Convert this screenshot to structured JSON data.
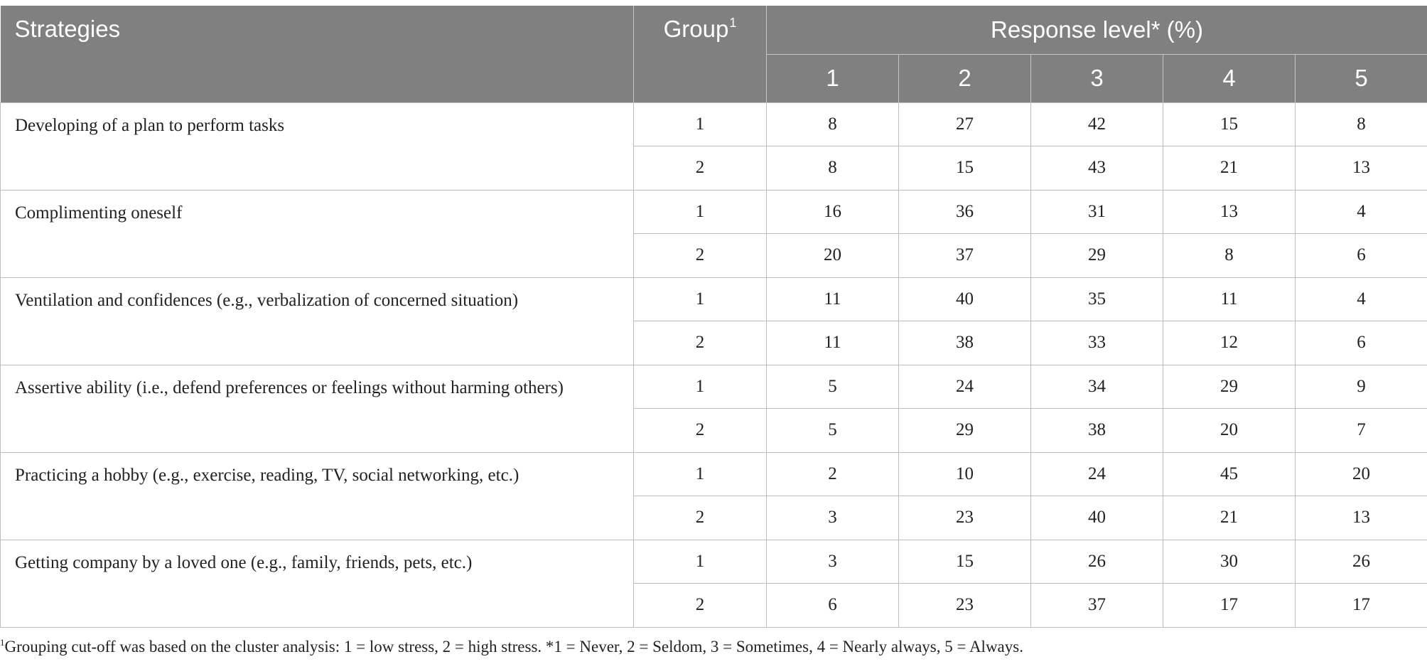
{
  "header": {
    "strategies": "Strategies",
    "group": "Group",
    "group_sup": "1",
    "response_level": "Response level* (%)",
    "levels": [
      "1",
      "2",
      "3",
      "4",
      "5"
    ]
  },
  "rows": [
    {
      "strategy": "Developing of a plan to perform tasks",
      "g1": {
        "group": "1",
        "values": [
          "8",
          "27",
          "42",
          "15",
          "8"
        ]
      },
      "g2": {
        "group": "2",
        "values": [
          "8",
          "15",
          "43",
          "21",
          "13"
        ]
      }
    },
    {
      "strategy": "Complimenting oneself",
      "g1": {
        "group": "1",
        "values": [
          "16",
          "36",
          "31",
          "13",
          "4"
        ]
      },
      "g2": {
        "group": "2",
        "values": [
          "20",
          "37",
          "29",
          "8",
          "6"
        ]
      }
    },
    {
      "strategy": "Ventilation and confidences (e.g., verbalization of concerned situation)",
      "g1": {
        "group": "1",
        "values": [
          "11",
          "40",
          "35",
          "11",
          "4"
        ]
      },
      "g2": {
        "group": "2",
        "values": [
          "11",
          "38",
          "33",
          "12",
          "6"
        ]
      }
    },
    {
      "strategy": "Assertive ability (i.e., defend preferences or feelings without harming others)",
      "g1": {
        "group": "1",
        "values": [
          "5",
          "24",
          "34",
          "29",
          "9"
        ]
      },
      "g2": {
        "group": "2",
        "values": [
          "5",
          "29",
          "38",
          "20",
          "7"
        ]
      }
    },
    {
      "strategy": "Practicing a hobby (e.g., exercise, reading, TV, social networking, etc.)",
      "g1": {
        "group": "1",
        "values": [
          "2",
          "10",
          "24",
          "45",
          "20"
        ]
      },
      "g2": {
        "group": "2",
        "values": [
          "3",
          "23",
          "40",
          "21",
          "13"
        ]
      }
    },
    {
      "strategy": "Getting company by a loved one (e.g., family, friends, pets, etc.)",
      "g1": {
        "group": "1",
        "values": [
          "3",
          "15",
          "26",
          "30",
          "26"
        ]
      },
      "g2": {
        "group": "2",
        "values": [
          "6",
          "23",
          "37",
          "17",
          "17"
        ]
      }
    }
  ],
  "footnote": {
    "sup": "1",
    "text": "Grouping cut-off was based on the cluster analysis: 1 = low stress, 2 = high stress. *1 = Never, 2 = Seldom, 3 = Sometimes, 4 = Nearly always, 5 = Always."
  }
}
